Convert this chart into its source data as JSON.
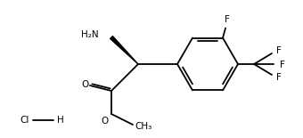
{
  "bg_color": "#ffffff",
  "line_color": "#000000",
  "text_color": "#000000",
  "font_size": 7.5,
  "line_width": 1.3,
  "figsize": [
    3.4,
    1.55
  ],
  "dpi": 100,
  "label_NH2": "H₂N",
  "label_O1": "O",
  "label_O2": "O",
  "label_F_top": "F",
  "label_F1": "F",
  "label_F2": "F",
  "label_F3": "F",
  "label_Cl": "Cl",
  "label_H": "H",
  "label_Me": "O—CH₃"
}
